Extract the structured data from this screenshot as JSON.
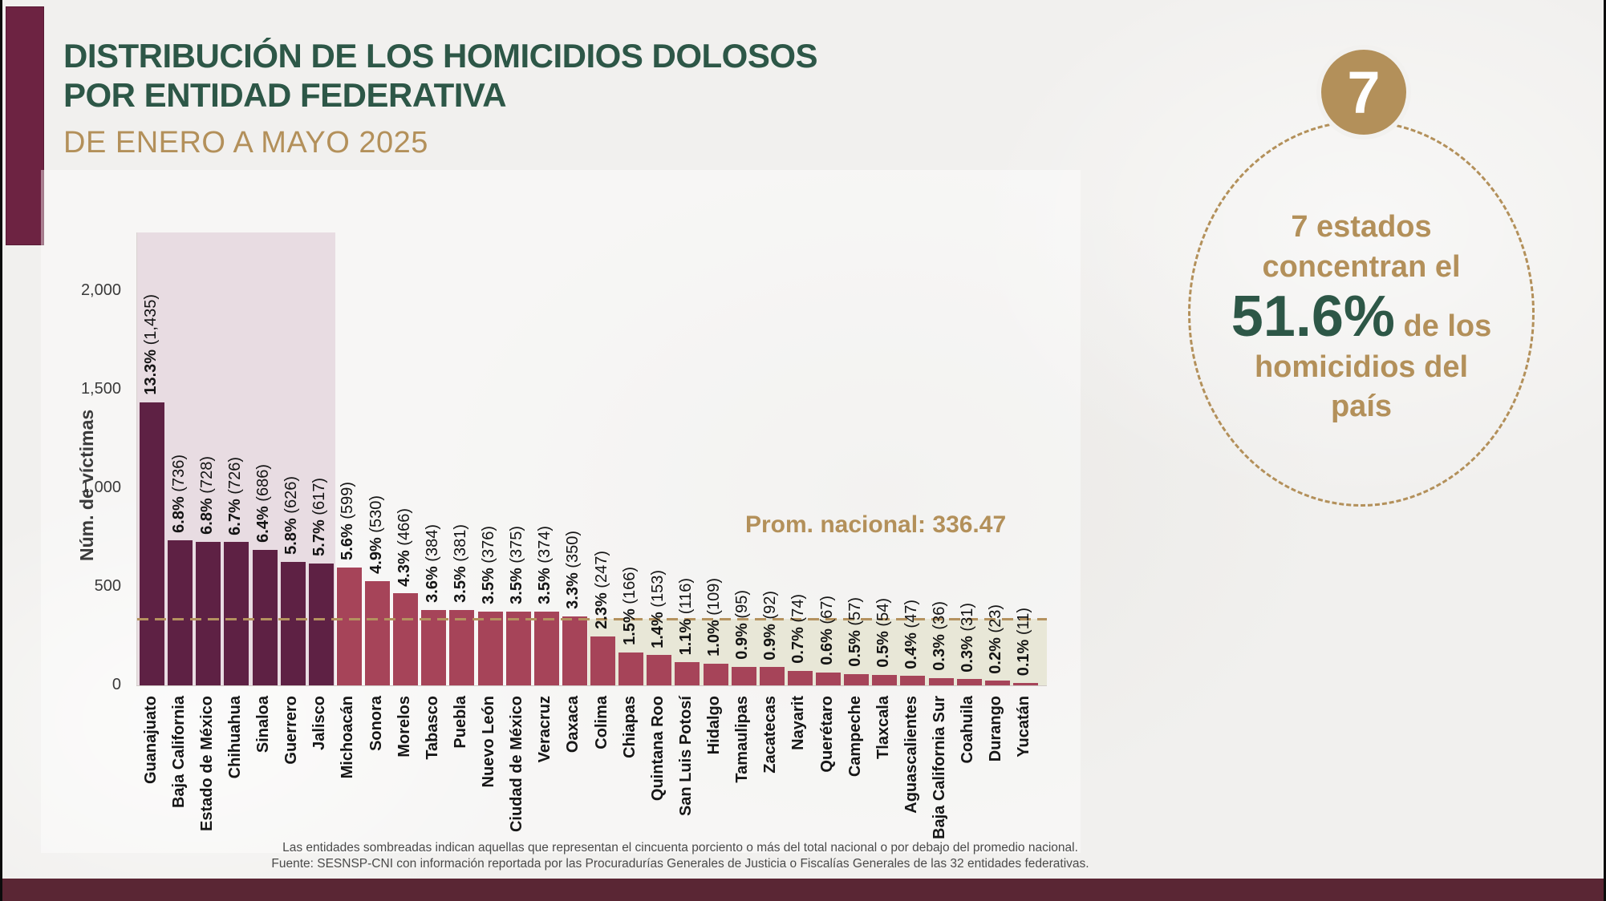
{
  "header": {
    "title_line1": "DISTRIBUCIÓN DE LOS HOMICIDIOS DOLOSOS",
    "title_line2": "POR ENTIDAD FEDERATIVA",
    "subtitle": "DE ENERO A MAYO 2025"
  },
  "highlight": {
    "badge_number": "7",
    "line1": "7 estados",
    "line2": "concentran el",
    "percent": "51.6%",
    "percent_suffix": " de los",
    "line3": "homicidios del",
    "line4": "país"
  },
  "chart_data": {
    "type": "bar",
    "title": "Distribución de los homicidios dolosos por entidad federativa, enero a mayo 2025",
    "ylabel": "Núm. de víctimas",
    "ylim": [
      0,
      2300
    ],
    "yticks": [
      0,
      500,
      1000,
      1500,
      2000
    ],
    "ytick_labels": [
      "0",
      "500",
      "1,000",
      "1,500",
      "2,000"
    ],
    "grid": false,
    "legend": "none",
    "average_line": {
      "label": "Prom. nacional: 336.47",
      "value": 336.47
    },
    "shaded_top_states": 7,
    "categories": [
      "Guanajuato",
      "Baja California",
      "Estado de México",
      "Chihuahua",
      "Sinaloa",
      "Guerrero",
      "Jalisco",
      "Michoacán",
      "Sonora",
      "Morelos",
      "Tabasco",
      "Puebla",
      "Nuevo León",
      "Ciudad de México",
      "Veracruz",
      "Oaxaca",
      "Colima",
      "Chiapas",
      "Quintana Roo",
      "San Luis Potosí",
      "Hidalgo",
      "Tamaulipas",
      "Zacatecas",
      "Nayarit",
      "Querétaro",
      "Campeche",
      "Tlaxcala",
      "Aguascalientes",
      "Baja California Sur",
      "Coahuila",
      "Durango",
      "Yucatán"
    ],
    "values": [
      1435,
      736,
      728,
      726,
      686,
      626,
      617,
      599,
      530,
      466,
      384,
      381,
      376,
      375,
      374,
      350,
      247,
      166,
      153,
      116,
      109,
      95,
      92,
      74,
      67,
      57,
      54,
      47,
      36,
      31,
      23,
      11
    ],
    "percent_labels": [
      "13.3%",
      "6.8%",
      "6.8%",
      "6.7%",
      "6.4%",
      "5.8%",
      "5.7%",
      "5.6%",
      "4.9%",
      "4.3%",
      "3.6%",
      "3.5%",
      "3.5%",
      "3.5%",
      "3.5%",
      "3.3%",
      "2.3%",
      "1.5%",
      "1.4%",
      "1.1%",
      "1.0%",
      "0.9%",
      "0.9%",
      "0.7%",
      "0.6%",
      "0.5%",
      "0.5%",
      "0.4%",
      "0.3%",
      "0.3%",
      "0.2%",
      "0.1%"
    ],
    "count_labels": [
      "(1,435)",
      "(736)",
      "(728)",
      "(726)",
      "(686)",
      "(626)",
      "(617)",
      "(599)",
      "(530)",
      "(466)",
      "(384)",
      "(381)",
      "(376)",
      "(375)",
      "(374)",
      "(350)",
      "(247)",
      "(166)",
      "(153)",
      "(116)",
      "(109)",
      "(95)",
      "(92)",
      "(74)",
      "(67)",
      "(57)",
      "(54)",
      "(47)",
      "(36)",
      "(31)",
      "(23)",
      "(11)"
    ]
  },
  "footnotes": {
    "line1": "Las entidades sombreadas indican aquellas que representan el cincuenta porciento o más del total nacional o por debajo del promedio nacional.",
    "line2": "Fuente: SESNSP-CNI con información reportada por las Procuradurías Generales de Justicia o Fiscalías Generales de las 32 entidades federativas."
  },
  "colors": {
    "title_green": "#2d5747",
    "gold": "#b3905a",
    "bar_dark": "#5e2144",
    "bar_light": "#a64459",
    "shade_pink": "#e8dce2",
    "shade_olive": "#e8e7d7",
    "accent_strip": "#6d2342",
    "bottom_strip": "#5a2634",
    "background": "#f1f0ee"
  }
}
